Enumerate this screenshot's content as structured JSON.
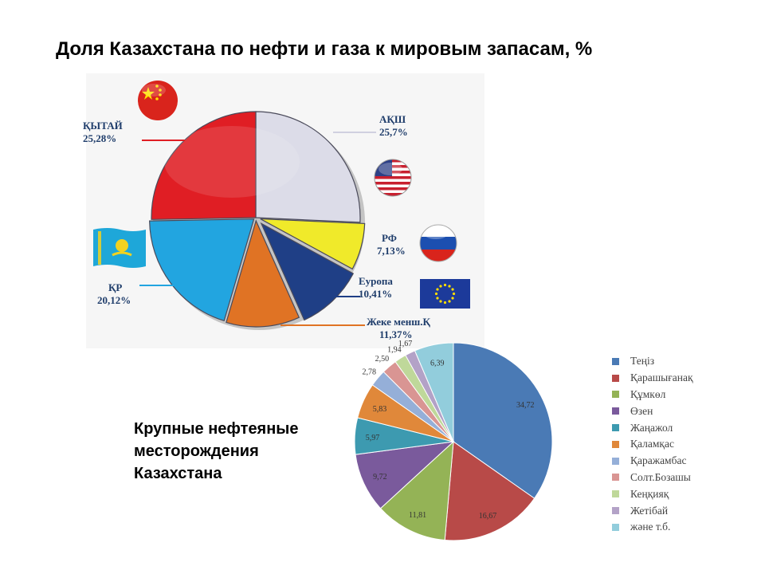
{
  "title": "Доля Казахстана  по нефти и газа к мировым запасам, %",
  "subtitle_lines": [
    "Крупные  нефтеяные",
    "месторождения",
    "Казахстана"
  ],
  "chart_data": [
    {
      "type": "pie",
      "title": "Доля Казахстана  по нефти и газа к мировым запасам, %",
      "slices": [
        {
          "label": "АҚШ",
          "value_label": "25,7%",
          "value": 25.7,
          "color": "#dcdce8"
        },
        {
          "label": "РФ",
          "value_label": "7,13%",
          "value": 7.13,
          "color": "#f0ea2a"
        },
        {
          "label": "Еуропа",
          "value_label": "10,41%",
          "value": 10.41,
          "color": "#1f3f86"
        },
        {
          "label": "Жеке менш.Қ",
          "value_label": "11,37%",
          "value": 11.37,
          "color": "#e07324"
        },
        {
          "label": "ҚР",
          "value_label": "20,12%",
          "value": 20.12,
          "color": "#22a5e0"
        },
        {
          "label": "ҚЫТАЙ",
          "value_label": "25,28%",
          "value": 25.28,
          "color": "#e01e24"
        }
      ]
    },
    {
      "type": "pie",
      "title": "Крупные  нефтеяные месторождения Казахстана",
      "legend_position": "right",
      "slices": [
        {
          "label": "Теңіз",
          "value": 34.72,
          "value_label": "34,72",
          "color": "#4a7ab5"
        },
        {
          "label": "Қарашығанақ",
          "value": 16.67,
          "value_label": "16,67",
          "color": "#b84a48"
        },
        {
          "label": "Құмкөл",
          "value": 11.81,
          "value_label": "11,81",
          "color": "#94b356"
        },
        {
          "label": "Өзен",
          "value": 9.72,
          "value_label": "9,72",
          "color": "#7a5a9c"
        },
        {
          "label": "Жаңажол",
          "value": 5.97,
          "value_label": "5,97",
          "color": "#3d9ab0"
        },
        {
          "label": "Қаламқас",
          "value": 5.83,
          "value_label": "5,83",
          "color": "#e0883a"
        },
        {
          "label": "Қаражамбас",
          "value": 2.78,
          "value_label": "2,78",
          "color": "#95afd8"
        },
        {
          "label": "Солт.Бозашы",
          "value": 2.5,
          "value_label": "2,50",
          "color": "#d99593"
        },
        {
          "label": "Кеңқияқ",
          "value": 1.94,
          "value_label": "1,94",
          "color": "#bfd89a"
        },
        {
          "label": "Жетібай",
          "value": 1.67,
          "value_label": "1,67",
          "color": "#b3a2c7"
        },
        {
          "label": "және т.б.",
          "value": 6.39,
          "value_label": "6,39",
          "color": "#92cddc"
        }
      ]
    }
  ],
  "flags": [
    {
      "name": "china-flag-icon",
      "country": "ҚЫТАЙ"
    },
    {
      "name": "usa-flag-icon",
      "country": "АҚШ"
    },
    {
      "name": "russia-flag-icon",
      "country": "РФ"
    },
    {
      "name": "kazakhstan-flag-icon",
      "country": "ҚР"
    },
    {
      "name": "eu-flag-icon",
      "country": "Еуропа"
    }
  ]
}
